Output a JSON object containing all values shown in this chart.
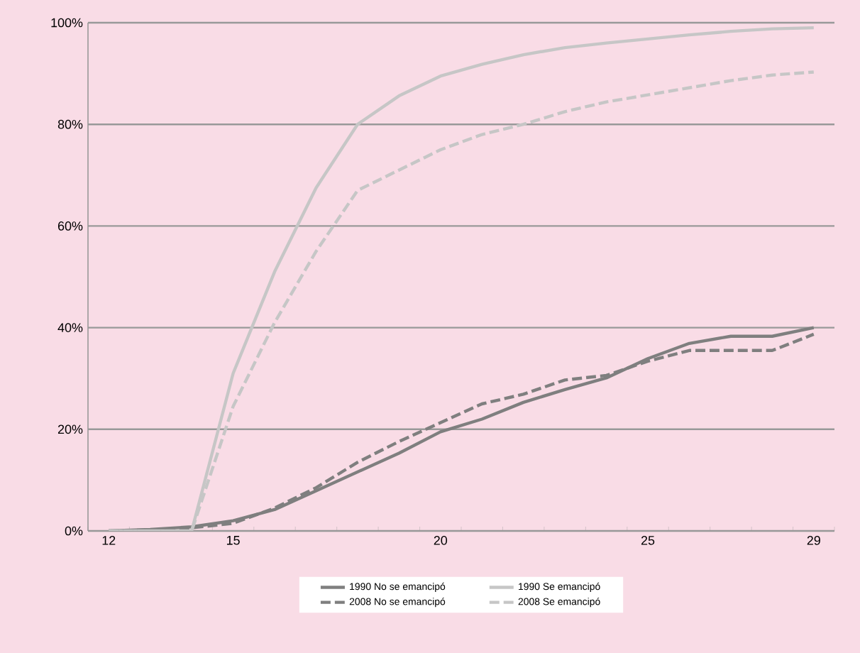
{
  "chart_data": {
    "type": "line",
    "categories": [
      "12",
      null,
      null,
      "15",
      null,
      null,
      null,
      null,
      "20",
      null,
      null,
      null,
      null,
      "25",
      null,
      null,
      null,
      "29"
    ],
    "ylim": [
      0,
      100
    ],
    "yticks": [
      {
        "value": 0,
        "label": "0%"
      },
      {
        "value": 20,
        "label": "20%"
      },
      {
        "value": 40,
        "label": "40%"
      },
      {
        "value": 60,
        "label": "60%"
      },
      {
        "value": 80,
        "label": "80%"
      },
      {
        "value": 100,
        "label": "100%"
      }
    ],
    "grid": "y",
    "legend": "bottom",
    "marker": "none",
    "series": [
      {
        "name": "1990 No se emancipó",
        "color": "#7f7f7f",
        "line_style": "solid",
        "values": [
          0,
          0.3,
          0.8,
          2,
          4.2,
          7.9,
          11.6,
          15.3,
          19.5,
          22,
          25.3,
          27.8,
          30.1,
          33.9,
          36.9,
          38.3,
          38.3,
          40
        ]
      },
      {
        "name": "1990 Se emancipó",
        "color": "#c6c6c6",
        "line_style": "solid",
        "values": [
          0,
          0,
          0,
          31,
          51,
          67.5,
          80,
          85.6,
          89.5,
          91.8,
          93.7,
          95.1,
          96,
          96.8,
          97.6,
          98.3,
          98.8,
          99
        ]
      },
      {
        "name": "2008 No se emancipó",
        "color": "#7f7f7f",
        "line_style": "dashed",
        "values": [
          0,
          0.2,
          0.6,
          1.5,
          4.5,
          8.5,
          13.5,
          17.6,
          21.3,
          25,
          26.9,
          29.7,
          30.6,
          33.4,
          35.5,
          35.5,
          35.5,
          38.7
        ]
      },
      {
        "name": "2008 Se emancipó",
        "color": "#c6c6c6",
        "line_style": "dashed",
        "values": [
          0,
          0,
          0,
          24.5,
          41,
          55,
          67,
          71,
          75,
          78,
          80,
          82.5,
          84.4,
          85.8,
          87.2,
          88.6,
          89.7,
          90.3
        ]
      }
    ]
  }
}
